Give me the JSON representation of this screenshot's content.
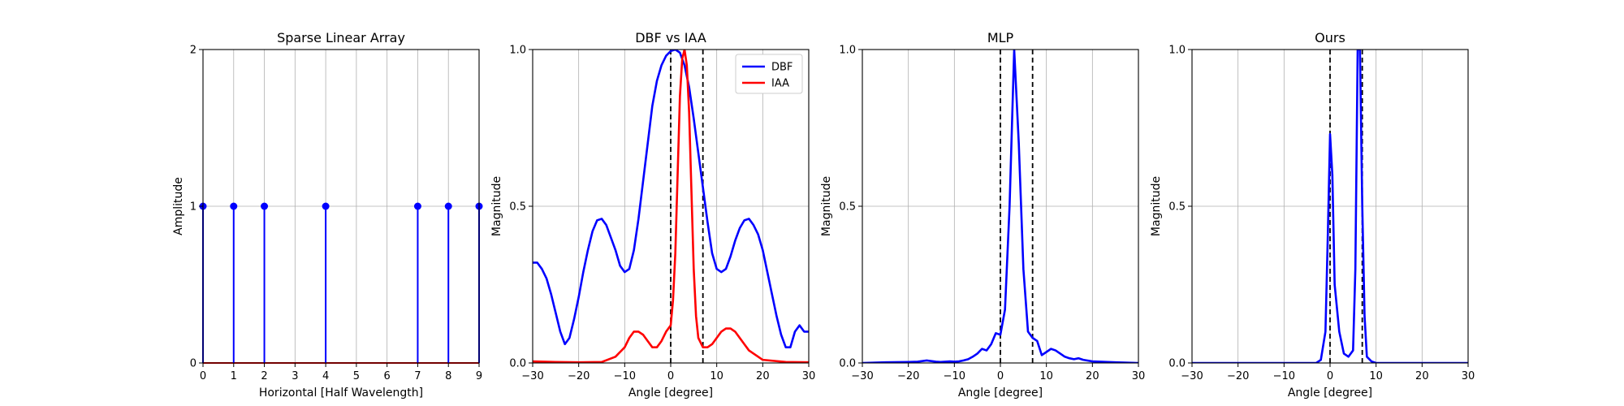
{
  "chart_data": [
    {
      "type": "stem",
      "title": "Sparse Linear Array",
      "xlabel": "Horizontal [Half Wavelength]",
      "ylabel": "Amplitude",
      "xlim": [
        0,
        9
      ],
      "ylim": [
        0,
        2
      ],
      "xticks": [
        0,
        1,
        2,
        3,
        4,
        5,
        6,
        7,
        8,
        9
      ],
      "yticks": [
        0,
        1,
        2
      ],
      "grid": true,
      "stems": {
        "x": [
          0,
          1,
          2,
          4,
          7,
          8,
          9
        ],
        "y": [
          1,
          1,
          1,
          1,
          1,
          1,
          1
        ],
        "color": "#0000ff"
      },
      "baseline": {
        "y": 0,
        "color": "#ff0000"
      }
    },
    {
      "type": "line",
      "title": "DBF vs IAA",
      "xlabel": "Angle [degree]",
      "ylabel": "Magnitude",
      "xlim": [
        -30,
        30
      ],
      "ylim": [
        0,
        1
      ],
      "xticks": [
        -30,
        -20,
        -10,
        0,
        10,
        20,
        30
      ],
      "yticks": [
        0,
        0.5,
        1.0
      ],
      "grid": true,
      "legend": "top-right",
      "vlines": [
        0,
        7
      ],
      "series": [
        {
          "name": "DBF",
          "color": "#0000ff",
          "x": [
            -30,
            -29,
            -28,
            -27,
            -26,
            -25,
            -24,
            -23,
            -22,
            -21,
            -20,
            -19,
            -18,
            -17,
            -16,
            -15,
            -14,
            -13,
            -12,
            -11,
            -10,
            -9,
            -8,
            -7,
            -6,
            -5,
            -4,
            -3,
            -2,
            -1,
            0,
            1,
            2,
            3,
            4,
            5,
            6,
            7,
            8,
            9,
            10,
            11,
            12,
            13,
            14,
            15,
            16,
            17,
            18,
            19,
            20,
            21,
            22,
            23,
            24,
            25,
            26,
            27,
            28,
            29,
            30
          ],
          "y": [
            0.32,
            0.32,
            0.3,
            0.27,
            0.22,
            0.16,
            0.1,
            0.06,
            0.08,
            0.14,
            0.21,
            0.29,
            0.36,
            0.42,
            0.455,
            0.46,
            0.44,
            0.4,
            0.36,
            0.31,
            0.29,
            0.3,
            0.36,
            0.46,
            0.58,
            0.7,
            0.82,
            0.9,
            0.95,
            0.98,
            0.995,
            1.0,
            0.99,
            0.95,
            0.88,
            0.78,
            0.67,
            0.56,
            0.45,
            0.35,
            0.3,
            0.29,
            0.3,
            0.34,
            0.39,
            0.43,
            0.455,
            0.46,
            0.44,
            0.41,
            0.36,
            0.29,
            0.22,
            0.15,
            0.09,
            0.05,
            0.05,
            0.1,
            0.12,
            0.1,
            0.1
          ]
        },
        {
          "name": "IAA",
          "color": "#ff0000",
          "x": [
            -30,
            -25,
            -20,
            -15,
            -12,
            -10,
            -9,
            -8,
            -7,
            -6,
            -5,
            -4,
            -3,
            -2,
            -1,
            0,
            0.5,
            1,
            1.5,
            2,
            2.5,
            3,
            3.5,
            4,
            4.5,
            5,
            5.5,
            6,
            7,
            8,
            9,
            10,
            11,
            12,
            13,
            14,
            15,
            16,
            17,
            18,
            20,
            25,
            30
          ],
          "y": [
            0.005,
            0.003,
            0.002,
            0.003,
            0.02,
            0.05,
            0.08,
            0.1,
            0.1,
            0.09,
            0.07,
            0.05,
            0.05,
            0.07,
            0.1,
            0.12,
            0.2,
            0.35,
            0.6,
            0.85,
            0.97,
            1.0,
            0.95,
            0.8,
            0.55,
            0.3,
            0.15,
            0.08,
            0.05,
            0.05,
            0.06,
            0.08,
            0.1,
            0.11,
            0.11,
            0.1,
            0.08,
            0.06,
            0.04,
            0.03,
            0.01,
            0.003,
            0.002
          ]
        }
      ]
    },
    {
      "type": "line",
      "title": "MLP",
      "xlabel": "Angle [degree]",
      "ylabel": "Magnitude",
      "xlim": [
        -30,
        30
      ],
      "ylim": [
        0,
        1
      ],
      "xticks": [
        -30,
        -20,
        -10,
        0,
        10,
        20,
        30
      ],
      "yticks": [
        0,
        0.5,
        1.0
      ],
      "grid": true,
      "vlines": [
        0,
        7
      ],
      "series": [
        {
          "color": "#0000ff",
          "x": [
            -30,
            -25,
            -20,
            -18,
            -17,
            -16,
            -15,
            -14,
            -13,
            -12,
            -11,
            -10,
            -9,
            -8,
            -7,
            -6,
            -5,
            -4,
            -3,
            -2,
            -1,
            0,
            1,
            2,
            3,
            4,
            5,
            6,
            7,
            8,
            9,
            10,
            11,
            12,
            13,
            14,
            15,
            16,
            17,
            18,
            20,
            25,
            30
          ],
          "y": [
            0.0,
            0.002,
            0.003,
            0.004,
            0.006,
            0.008,
            0.006,
            0.004,
            0.003,
            0.004,
            0.005,
            0.004,
            0.005,
            0.008,
            0.012,
            0.02,
            0.03,
            0.045,
            0.04,
            0.06,
            0.095,
            0.09,
            0.17,
            0.5,
            1.0,
            0.7,
            0.3,
            0.1,
            0.08,
            0.07,
            0.025,
            0.035,
            0.045,
            0.04,
            0.03,
            0.02,
            0.015,
            0.012,
            0.015,
            0.01,
            0.005,
            0.002,
            0.0
          ]
        }
      ]
    },
    {
      "type": "line",
      "title": "Ours",
      "xlabel": "Angle [degree]",
      "ylabel": "Magnitude",
      "xlim": [
        -30,
        30
      ],
      "ylim": [
        0,
        1
      ],
      "xticks": [
        -30,
        -20,
        -10,
        0,
        10,
        20,
        30
      ],
      "yticks": [
        0,
        0.5,
        1.0
      ],
      "grid": true,
      "vlines": [
        0,
        7
      ],
      "series": [
        {
          "color": "#0000ff",
          "x": [
            -30,
            -10,
            -5,
            -3,
            -2,
            -1,
            -0.5,
            0,
            0.5,
            1,
            2,
            3,
            4,
            5,
            5.5,
            6,
            6.5,
            7,
            7.5,
            8,
            9,
            10,
            15,
            30
          ],
          "y": [
            0.0,
            0.0,
            0.0,
            0.0,
            0.01,
            0.1,
            0.4,
            0.73,
            0.6,
            0.25,
            0.1,
            0.03,
            0.02,
            0.04,
            0.3,
            1.0,
            1.0,
            0.5,
            0.15,
            0.02,
            0.005,
            0.0,
            0.0,
            0.0
          ]
        }
      ]
    }
  ]
}
